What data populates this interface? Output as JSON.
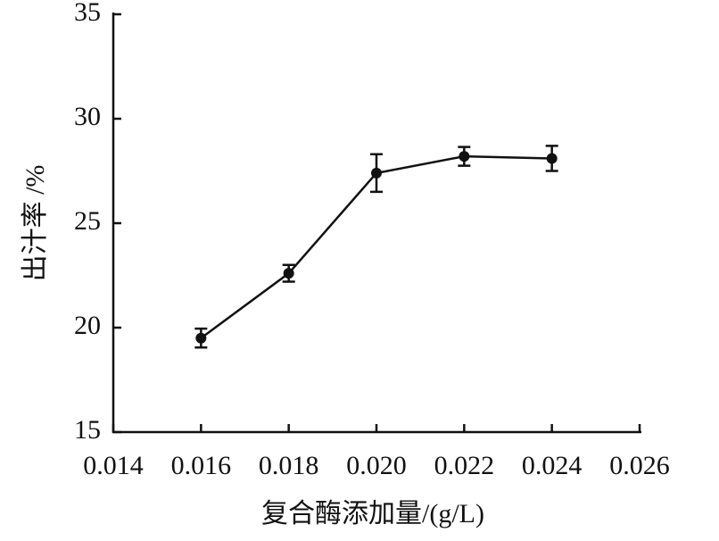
{
  "chart_data": {
    "type": "line",
    "x_label": "复合酶添加量/(g/L)",
    "y_label": "出汁率 /%",
    "x": [
      0.016,
      0.018,
      0.02,
      0.022,
      0.024
    ],
    "series": [
      {
        "color": "#111111",
        "values": [
          19.5,
          22.6,
          27.4,
          28.2,
          28.1
        ],
        "errors": [
          0.45,
          0.4,
          0.9,
          0.45,
          0.6
        ]
      }
    ],
    "xlim": [
      0.014,
      0.026
    ],
    "xticks": [
      0.014,
      0.016,
      0.018,
      {
        "value": 0.02,
        "label": "0.020"
      },
      0.022,
      0.024,
      0.026
    ],
    "ylim": [
      15,
      35
    ],
    "yticks": [
      15,
      20,
      25,
      30,
      35
    ]
  }
}
